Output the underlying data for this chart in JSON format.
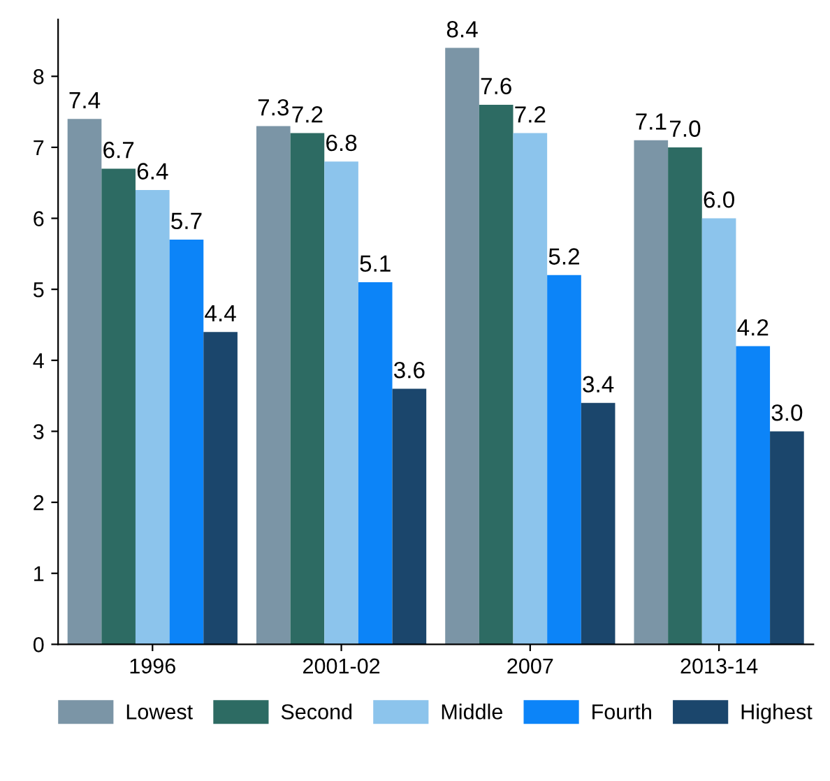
{
  "chart_data": {
    "type": "bar",
    "categories": [
      "1996",
      "2001-02",
      "2007",
      "2013-14"
    ],
    "series": [
      {
        "name": "Lowest",
        "color": "#7b95a6",
        "values": [
          7.4,
          7.3,
          8.4,
          7.1
        ],
        "value_labels": [
          "7.4",
          "7.3",
          "8.4",
          "7.1"
        ]
      },
      {
        "name": "Second",
        "color": "#2d6b63",
        "values": [
          6.7,
          7.2,
          7.6,
          7.0
        ],
        "value_labels": [
          "6.7",
          "7.2",
          "7.6",
          "7.0"
        ]
      },
      {
        "name": "Middle",
        "color": "#8cc4ec",
        "values": [
          6.4,
          6.8,
          7.2,
          6.0
        ],
        "value_labels": [
          "6.4",
          "6.8",
          "7.2",
          "6.0"
        ]
      },
      {
        "name": "Fourth",
        "color": "#0c84f8",
        "values": [
          5.7,
          5.1,
          5.2,
          4.2
        ],
        "value_labels": [
          "5.7",
          "5.1",
          "5.2",
          "4.2"
        ]
      },
      {
        "name": "Highest",
        "color": "#1b466c",
        "values": [
          4.4,
          3.6,
          3.4,
          3.0
        ],
        "value_labels": [
          "4.4",
          "3.6",
          "3.4",
          "3.0"
        ]
      }
    ],
    "ylim": [
      0,
      8.8
    ],
    "yticks": [
      0,
      1,
      2,
      3,
      4,
      5,
      6,
      7,
      8
    ],
    "grid": false,
    "legend": "bottom"
  }
}
